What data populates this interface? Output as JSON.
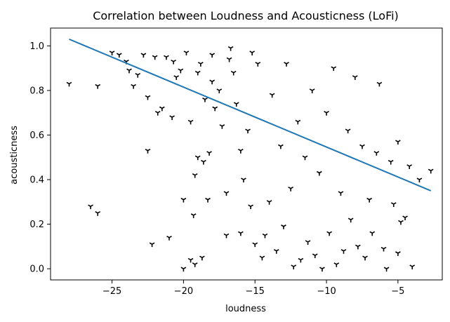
{
  "chart_data": {
    "type": "scatter",
    "title": "Correlation between Loudness and Acousticness (LoFi)",
    "xlabel": "loudness",
    "ylabel": "acousticness",
    "xlim": [
      -29.3,
      -1.9
    ],
    "ylim": [
      -0.05,
      1.08
    ],
    "xticks": [
      -25,
      -20,
      -15,
      -10,
      -5
    ],
    "yticks": [
      0.0,
      0.2,
      0.4,
      0.6,
      0.8,
      1.0
    ],
    "xtick_labels": [
      "−25",
      "−20",
      "−15",
      "−10",
      "−5"
    ],
    "ytick_labels": [
      "0.0",
      "0.2",
      "0.4",
      "0.6",
      "0.8",
      "1.0"
    ],
    "grid": false,
    "marker_color": "#000000",
    "line_color": "#1f77b4",
    "trend_line": {
      "x": [
        -28.0,
        -2.7
      ],
      "y": [
        1.03,
        0.35
      ]
    },
    "points": [
      [
        -28.0,
        0.83
      ],
      [
        -26.0,
        0.82
      ],
      [
        -26.0,
        0.25
      ],
      [
        -25.0,
        0.97
      ],
      [
        -24.5,
        0.96
      ],
      [
        -24.0,
        0.93
      ],
      [
        -23.8,
        0.89
      ],
      [
        -23.5,
        0.82
      ],
      [
        -23.2,
        0.87
      ],
      [
        -22.8,
        0.96
      ],
      [
        -22.5,
        0.77
      ],
      [
        -22.5,
        0.53
      ],
      [
        -22.2,
        0.11
      ],
      [
        -22.0,
        0.95
      ],
      [
        -21.8,
        0.7
      ],
      [
        -21.5,
        0.72
      ],
      [
        -21.2,
        0.95
      ],
      [
        -21.0,
        0.14
      ],
      [
        -20.8,
        0.68
      ],
      [
        -20.5,
        0.86
      ],
      [
        -20.2,
        0.89
      ],
      [
        -20.0,
        0.0
      ],
      [
        -20.0,
        0.31
      ],
      [
        -19.8,
        0.97
      ],
      [
        -19.5,
        0.66
      ],
      [
        -19.5,
        0.04
      ],
      [
        -19.3,
        0.24
      ],
      [
        -19.2,
        0.42
      ],
      [
        -19.2,
        0.02
      ],
      [
        -19.0,
        0.5
      ],
      [
        -19.0,
        0.88
      ],
      [
        -18.8,
        0.92
      ],
      [
        -18.6,
        0.48
      ],
      [
        -18.5,
        0.76
      ],
      [
        -18.3,
        0.31
      ],
      [
        -18.2,
        0.52
      ],
      [
        -18.0,
        0.96
      ],
      [
        -18.0,
        0.84
      ],
      [
        -17.8,
        0.72
      ],
      [
        -17.5,
        0.8
      ],
      [
        -17.3,
        0.64
      ],
      [
        -17.0,
        0.34
      ],
      [
        -17.0,
        0.15
      ],
      [
        -16.8,
        0.94
      ],
      [
        -16.5,
        0.88
      ],
      [
        -16.3,
        0.74
      ],
      [
        -16.0,
        0.53
      ],
      [
        -16.0,
        0.16
      ],
      [
        -15.8,
        0.4
      ],
      [
        -15.5,
        0.62
      ],
      [
        -15.3,
        0.28
      ],
      [
        -15.0,
        0.11
      ],
      [
        -14.8,
        0.92
      ],
      [
        -14.5,
        0.05
      ],
      [
        -14.3,
        0.15
      ],
      [
        -14.0,
        0.3
      ],
      [
        -13.8,
        0.78
      ],
      [
        -13.5,
        0.08
      ],
      [
        -13.2,
        0.55
      ],
      [
        -13.0,
        0.19
      ],
      [
        -12.8,
        0.92
      ],
      [
        -12.5,
        0.36
      ],
      [
        -12.3,
        0.01
      ],
      [
        -12.0,
        0.66
      ],
      [
        -11.8,
        0.04
      ],
      [
        -11.5,
        0.5
      ],
      [
        -11.3,
        0.12
      ],
      [
        -11.0,
        0.8
      ],
      [
        -10.8,
        0.06
      ],
      [
        -10.5,
        0.43
      ],
      [
        -10.3,
        0.0
      ],
      [
        -10.0,
        0.7
      ],
      [
        -9.8,
        0.16
      ],
      [
        -9.5,
        0.9
      ],
      [
        -9.3,
        0.02
      ],
      [
        -9.0,
        0.34
      ],
      [
        -8.8,
        0.08
      ],
      [
        -8.5,
        0.62
      ],
      [
        -8.3,
        0.22
      ],
      [
        -8.0,
        0.86
      ],
      [
        -7.8,
        0.1
      ],
      [
        -7.5,
        0.55
      ],
      [
        -7.3,
        0.05
      ],
      [
        -7.0,
        0.31
      ],
      [
        -6.8,
        0.16
      ],
      [
        -6.5,
        0.52
      ],
      [
        -6.3,
        0.83
      ],
      [
        -6.0,
        0.09
      ],
      [
        -5.8,
        0.0
      ],
      [
        -5.5,
        0.48
      ],
      [
        -5.3,
        0.29
      ],
      [
        -5.0,
        0.57
      ],
      [
        -5.0,
        0.07
      ],
      [
        -4.8,
        0.21
      ],
      [
        -4.5,
        0.23
      ],
      [
        -4.2,
        0.46
      ],
      [
        -4.0,
        0.01
      ],
      [
        -3.5,
        0.4
      ],
      [
        -2.7,
        0.44
      ],
      [
        -26.5,
        0.28
      ],
      [
        -20.7,
        0.93
      ],
      [
        -18.7,
        0.05
      ],
      [
        -16.7,
        0.99
      ],
      [
        -15.2,
        0.97
      ]
    ]
  }
}
